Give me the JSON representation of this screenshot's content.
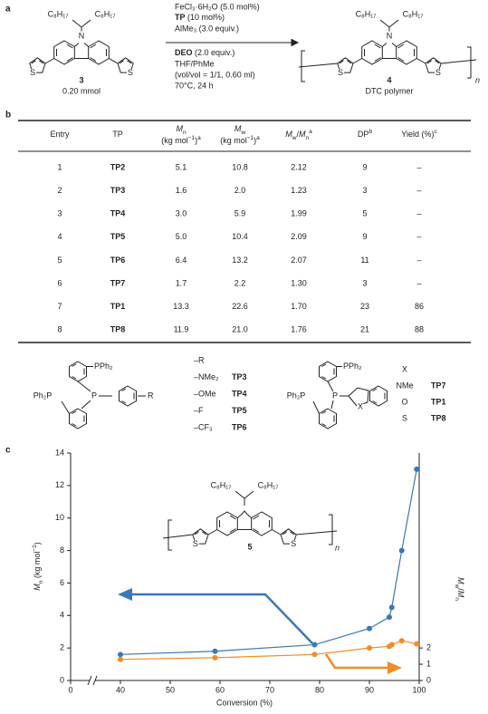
{
  "panel_a": {
    "label": "a",
    "reactant": {
      "alkyl": [
        "C₈H₁₇",
        "C₈H₁₇"
      ],
      "N": "N",
      "S": [
        "S",
        "S"
      ],
      "number": "3",
      "amount": "0.20 mmol"
    },
    "conditions": {
      "catalyst": "FeCl₃·6H₂O (5.0 mol%)",
      "ligand": {
        "name": "TP",
        "amount": " (10 mol%)"
      },
      "additive": "AlMe₃ (3.0 equiv.)",
      "oxidant": {
        "name": "DEO",
        "amount": " (2.0 equiv.)"
      },
      "solvent": "THF/PhMe",
      "ratio": "(vol/vol = 1/1, 0.60 ml)",
      "temperature": "70°C, 24 h"
    },
    "product": {
      "alkyl": [
        "C₈H₁₇",
        "C₈H₁₇"
      ],
      "N": "N",
      "S": [
        "S",
        "S"
      ],
      "number": "4",
      "name": "DTC polymer",
      "repeat": "n"
    }
  },
  "panel_b": {
    "label": "b",
    "headers": [
      {
        "lines": [
          [
            {
              "text": "Entry"
            }
          ]
        ]
      },
      {
        "lines": [
          [
            {
              "text": "TP"
            }
          ]
        ]
      },
      {
        "lines": [
          [
            {
              "text": "M",
              "style": "italic"
            },
            {
              "text": "n",
              "style": "sub"
            }
          ],
          [
            {
              "text": "(kg mol"
            },
            {
              "text": "−1",
              "style": "sup"
            },
            {
              "text": ")"
            },
            {
              "text": "a",
              "style": "sup"
            }
          ]
        ]
      },
      {
        "lines": [
          [
            {
              "text": "M",
              "style": "italic"
            },
            {
              "text": "w",
              "style": "sub"
            }
          ],
          [
            {
              "text": "(kg mol"
            },
            {
              "text": "−1",
              "style": "sup"
            },
            {
              "text": ")"
            },
            {
              "text": "a",
              "style": "sup"
            }
          ]
        ]
      },
      {
        "lines": [
          [
            {
              "text": "M",
              "style": "italic"
            },
            {
              "text": "w",
              "style": "sub"
            },
            {
              "text": "/"
            },
            {
              "text": "M",
              "style": "italic"
            },
            {
              "text": "n",
              "style": "sub"
            },
            {
              "text": "a",
              "style": "sup"
            }
          ]
        ]
      },
      {
        "lines": [
          [
            {
              "text": "DP"
            },
            {
              "text": "b",
              "style": "sup"
            }
          ]
        ]
      },
      {
        "lines": [
          [
            {
              "text": "Yield (%)"
            },
            {
              "text": "c",
              "style": "sup"
            }
          ]
        ]
      }
    ],
    "rows": [
      [
        "1",
        "TP2",
        "5.1",
        "10.8",
        "2.12",
        "9",
        "–"
      ],
      [
        "2",
        "TP3",
        "1.6",
        "2.0",
        "1.23",
        "3",
        "–"
      ],
      [
        "3",
        "TP4",
        "3.0",
        "5.9",
        "1.99",
        "5",
        "–"
      ],
      [
        "4",
        "TP5",
        "5.0",
        "10.4",
        "2.09",
        "9",
        "–"
      ],
      [
        "5",
        "TP6",
        "6.4",
        "13.2",
        "2.07",
        "11",
        "–"
      ],
      [
        "6",
        "TP7",
        "1.7",
        "2.2",
        "1.30",
        "3",
        "–"
      ],
      [
        "7",
        "TP1",
        "13.3",
        "22.6",
        "1.70",
        "23",
        "86"
      ],
      [
        "8",
        "TP8",
        "11.9",
        "21.0",
        "1.76",
        "21",
        "88"
      ]
    ],
    "ligands": {
      "left": {
        "atoms": [
          "PPh₂",
          "Ph₂P",
          "P",
          "R"
        ],
        "substituents": [
          "–R",
          "–NMe₂",
          "–OMe",
          "–F",
          "–CF₃"
        ],
        "names": [
          "TP3",
          "TP4",
          "TP5",
          "TP6"
        ]
      },
      "right": {
        "atoms": [
          "PPh₂",
          "Ph₂P",
          "P",
          "X"
        ],
        "header": "X",
        "substituents": [
          "NMe",
          "O",
          "S"
        ],
        "names": [
          "TP7",
          "TP1",
          "TP8"
        ]
      }
    }
  },
  "chart_data": {
    "type": "scatter",
    "label": "c",
    "x_label": "Conversion (%)",
    "y_label": [
      {
        "text": "M",
        "style": "italic"
      },
      {
        "text": "n",
        "style": "sub"
      },
      {
        "text": " (kg mol"
      },
      {
        "text": "−1",
        "style": "sup"
      },
      {
        "text": ")"
      }
    ],
    "y2_label": [
      {
        "text": "M",
        "style": "italic"
      },
      {
        "text": "w",
        "style": "sub"
      },
      {
        "text": "/"
      },
      {
        "text": "M",
        "style": "italic"
      },
      {
        "text": "n",
        "style": "sub"
      }
    ],
    "xlim": [
      0,
      100
    ],
    "xticks": [
      0,
      40,
      50,
      60,
      70,
      80,
      90,
      100
    ],
    "x_axis_break": true,
    "ylim": [
      0,
      14
    ],
    "yticks": [
      0,
      2,
      4,
      6,
      8,
      10,
      12,
      14
    ],
    "y2lim": [
      0,
      14
    ],
    "y2ticks": [
      0,
      1,
      2
    ],
    "x": [
      40,
      59,
      79,
      90,
      94,
      94.5,
      96.5,
      99.5
    ],
    "series": [
      {
        "color": "#3a77b7",
        "values": [
          1.6,
          1.8,
          2.2,
          3.2,
          3.9,
          4.5,
          8.0,
          13.0
        ]
      },
      {
        "color": "#f28c28",
        "axis": "y2",
        "values": [
          1.3,
          1.4,
          1.6,
          2.0,
          2.1,
          2.2,
          2.45,
          2.25
        ]
      }
    ],
    "structure": {
      "alkyl": [
        "C₈H₁₇",
        "C₈H₁₇"
      ],
      "S": [
        "S",
        "S"
      ],
      "number": "5",
      "repeat": "n"
    }
  }
}
